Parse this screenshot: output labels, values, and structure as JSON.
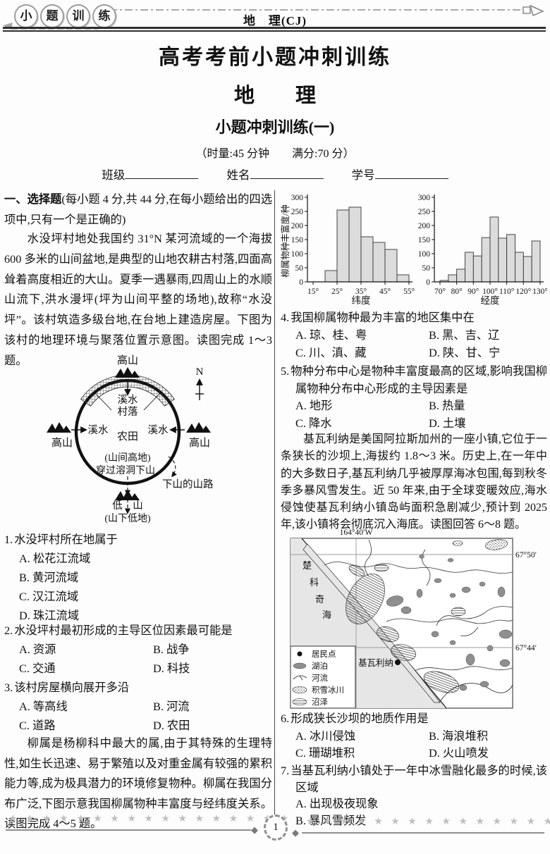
{
  "header": {
    "logo_chars": [
      "小",
      "题",
      "训",
      "练"
    ],
    "subject": "地　理(CJ)"
  },
  "title_block": {
    "main": "高考考前小题冲刺训练",
    "subject": "地　　理",
    "session": "小题冲刺训练(一)",
    "meta": "（时量:45 分钟　　满分:70 分）",
    "field_class": "班级",
    "field_name": "姓名",
    "field_id": "学号"
  },
  "section1": {
    "heading_bold": "一、选择题",
    "heading_rest": "(每小题 4 分,共 44 分,在每小题给出的四选项中,只有一个是正确的)"
  },
  "passages": {
    "p1": "水没坪村地处我国约 31°N 某河流域的一个海拔 600 多米的山间盆地,是典型的山地农耕古村落,四面高耸着高度相近的大山。夏季一遇暴雨,四周山上的水顺山流下,洪水漫坪(坪为山间平整的场地),故称“水没坪”。该村筑造多级台地,在台地上建造房屋。下图为该村的地理环境与聚落位置示意图。读图完成 1～3 题。",
    "p2": "柳属是杨柳科中最大的属,由于其特殊的生理特性,如生长迅速、易于繁殖以及对重金属有较强的累积能力等,成为极具潜力的环境修复物种。柳属在我国分布广泛,下图示意我国柳属物种丰富度与经纬度关系。读图完成 4～5 题。",
    "p3": "基瓦利纳是美国阿拉斯加州的一座小镇,它位于一条狭长的沙坝上,海拔约 1.8～3 米。历史上,在一年中的大多数日子,基瓦利纳几乎被厚厚海冰包围,每到秋冬季多暴风雪发生。近 50 年来,由于全球变暖效应,海水侵蚀使基瓦利纳小镇岛屿面积急剧减少,预计到 2025 年,该小镇将会彻底沉入海底。读图回答 6～8 题。"
  },
  "village_diagram": {
    "north": "N",
    "mountain_top": "高山",
    "mountain_left": "高山",
    "mountain_right": "高山",
    "stream_top": "溪水",
    "village": "村落",
    "stream_left": "溪水",
    "stream_right": "溪水",
    "farmland": "农田",
    "highland": "(山间高地)",
    "cave_note": "穿过溶洞下山",
    "path_note": "下山的山路",
    "low_mountain": "低　山",
    "lowland": "(山下低地)"
  },
  "questions": [
    {
      "no": "1.",
      "text": "水没坪村所在地属于",
      "options": [
        "A. 松花江流域",
        "B. 黄河流域",
        "C. 汉江流域",
        "D. 珠江流域"
      ]
    },
    {
      "no": "2.",
      "text": "水没坪村最初形成的主导区位因素最可能是",
      "options": [
        "A. 资源",
        "B. 战争",
        "C. 交通",
        "D. 科技"
      ]
    },
    {
      "no": "3.",
      "text": "该村房屋横向展开多沿",
      "options": [
        "A. 等高线",
        "B. 河流",
        "C. 道路",
        "D. 农田"
      ]
    },
    {
      "no": "4.",
      "text": "我国柳属物种最为丰富的地区集中在",
      "options": [
        "A. 琼、桂、粤",
        "B. 黑、吉、辽",
        "C. 川、滇、藏",
        "D. 陕、甘、宁"
      ]
    },
    {
      "no": "5.",
      "text": "物种分布中心是物种丰富度最高的区域,影响我国柳属物种分布中心形成的主导因素是",
      "options": [
        "A. 地形",
        "B. 热量",
        "C. 降水",
        "D. 土壤"
      ]
    },
    {
      "no": "6.",
      "text": "形成狭长沙坝的地质作用是",
      "options": [
        "A. 冰川侵蚀",
        "B. 海浪堆积",
        "C. 珊瑚堆积",
        "D. 火山喷发"
      ]
    },
    {
      "no": "7.",
      "text": "当基瓦利纳小镇处于一年中冰雪融化最多的时候,该区域",
      "options": [
        "A. 出现极夜现象",
        "B. 暴风雪频发"
      ]
    }
  ],
  "map": {
    "lon_label": "164°40′W",
    "lat_top": "67°50′",
    "lat_bottom": "67°44′",
    "sea_name": "楚科奇海",
    "sea_chars": [
      "楚",
      "科",
      "奇",
      "海"
    ],
    "town": "基瓦利纳",
    "legend": [
      "居民点",
      "湖泊",
      "河流",
      "积雪冰川",
      "沼泽"
    ]
  },
  "chart_data": [
    {
      "type": "bar",
      "ylabel": "柳属物种丰富度/种",
      "xlabel": "纬度",
      "x_ticks": [
        "15°",
        "25°",
        "35°",
        "45°",
        "55°"
      ],
      "y_ticks": [
        0,
        50,
        100,
        150,
        200,
        250,
        300
      ],
      "ylim": [
        0,
        300
      ],
      "bins_start": 20,
      "bin_width": 5,
      "bin_unit": "degree latitude",
      "values": [
        40,
        255,
        265,
        160,
        140,
        115,
        25
      ]
    },
    {
      "type": "bar",
      "ylabel": "",
      "xlabel": "经度",
      "x_ticks": [
        "70°",
        "80°",
        "90°",
        "100°",
        "110°",
        "120°",
        "130°"
      ],
      "y_ticks": [
        0,
        50,
        100,
        150,
        200,
        250,
        300
      ],
      "ylim": [
        0,
        300
      ],
      "bins_start": 70,
      "bin_width": 5,
      "bin_unit": "degree longitude",
      "values": [
        5,
        25,
        45,
        105,
        92,
        157,
        230,
        155,
        168,
        105,
        90,
        145
      ]
    }
  ],
  "footer": {
    "stars_left": "★ ★ ★ ★ ★ ★ ★ ★ ★ ★ ★ ★ ★ ★ ★ ★ ★",
    "stars_right": "★ ★ ★ ★ ★ ★ ★ ★ ★ ★ ★ ★ ★ ★ ★ ★ ★",
    "diamond": "◆",
    "page_number": "1"
  }
}
